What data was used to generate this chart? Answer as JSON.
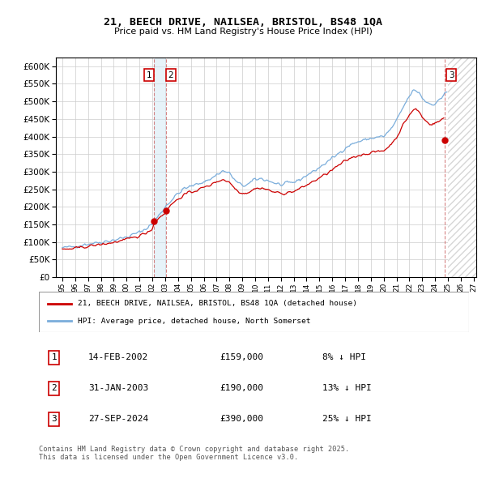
{
  "title": "21, BEECH DRIVE, NAILSEA, BRISTOL, BS48 1QA",
  "subtitle": "Price paid vs. HM Land Registry's House Price Index (HPI)",
  "legend_line1": "21, BEECH DRIVE, NAILSEA, BRISTOL, BS48 1QA (detached house)",
  "legend_line2": "HPI: Average price, detached house, North Somerset",
  "transactions": [
    {
      "num": "1",
      "date": "14-FEB-2002",
      "price": "£159,000",
      "pct": "8% ↓ HPI"
    },
    {
      "num": "2",
      "date": "31-JAN-2003",
      "price": "£190,000",
      "pct": "13% ↓ HPI"
    },
    {
      "num": "3",
      "date": "27-SEP-2024",
      "price": "£390,000",
      "pct": "25% ↓ HPI"
    }
  ],
  "footer": "Contains HM Land Registry data © Crown copyright and database right 2025.\nThis data is licensed under the Open Government Licence v3.0.",
  "red_color": "#cc0000",
  "blue_color": "#7aaddb",
  "grid_color": "#cccccc",
  "t1_year": 2002.118,
  "t2_year": 2003.082,
  "t3_year": 2024.743,
  "t1_price": 159000,
  "t2_price": 190000,
  "t3_price": 390000,
  "xstart": 1994.5,
  "xend": 2027.2,
  "ylim_max": 625000
}
